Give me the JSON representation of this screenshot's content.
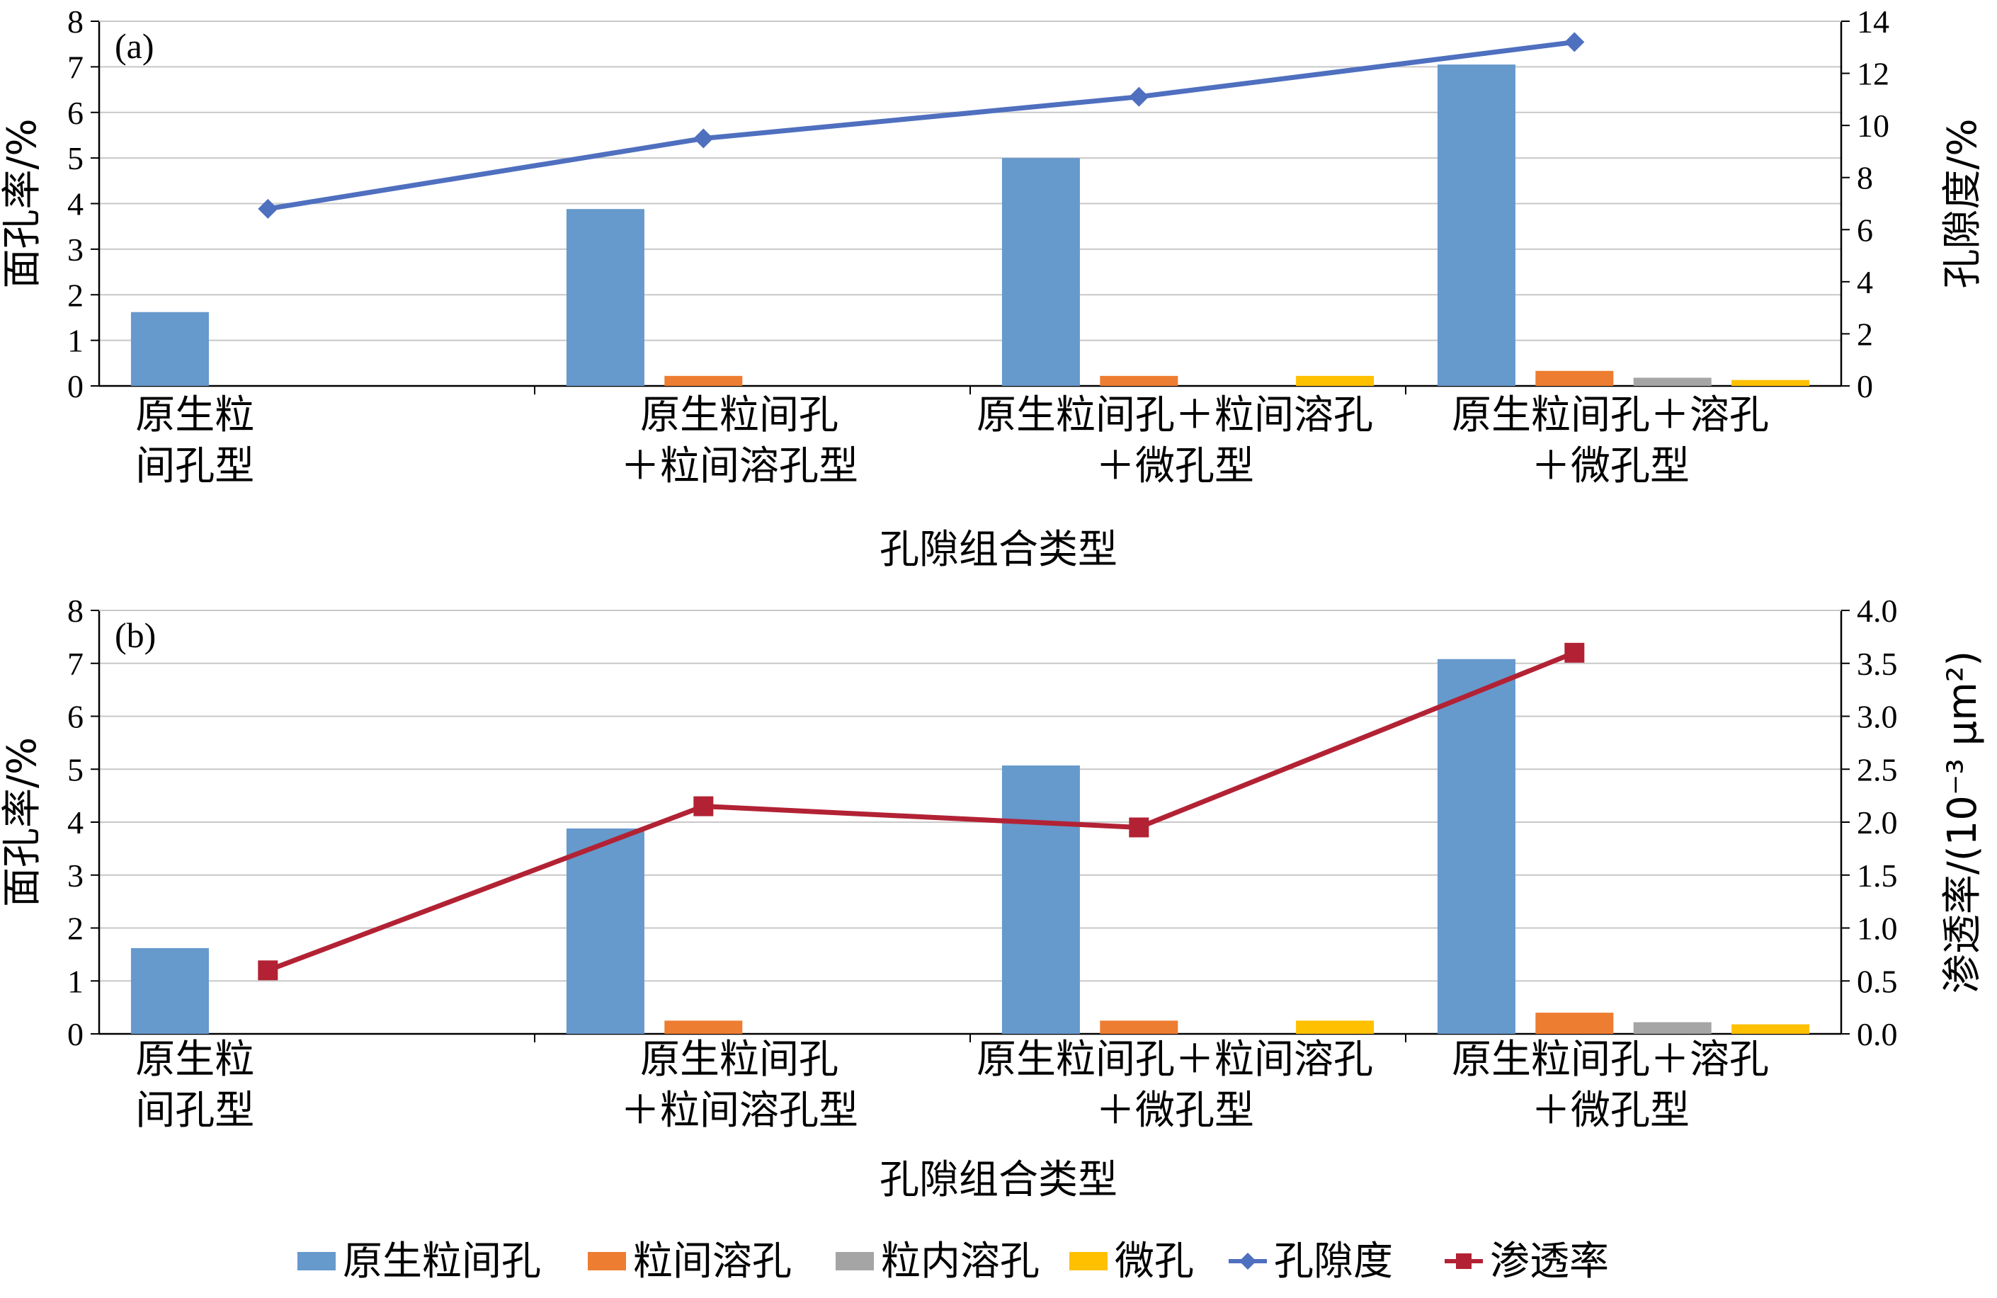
{
  "legend": {
    "items": [
      {
        "label": "原生粒间孔",
        "color": "#6699CC",
        "kind": "bar"
      },
      {
        "label": "粒间溶孔",
        "color": "#ED7D31",
        "kind": "bar"
      },
      {
        "label": "粒内溶孔",
        "color": "#A5A5A5",
        "kind": "bar"
      },
      {
        "label": "微孔",
        "color": "#FFC000",
        "kind": "bar"
      },
      {
        "label": "孔隙度",
        "color": "#4F6FBF",
        "kind": "line-diamond"
      },
      {
        "label": "渗透率",
        "color": "#B22234",
        "kind": "line-square"
      }
    ],
    "placement": "bottom"
  },
  "chart_data": [
    {
      "type": "bar",
      "panel_label": "(a)",
      "categories": [
        [
          "原生粒",
          "间孔型"
        ],
        [
          "原生粒间孔",
          "＋粒间溶孔型"
        ],
        [
          "原生粒间孔＋粒间溶孔",
          "＋微孔型"
        ],
        [
          "原生粒间孔＋溶孔",
          "＋微孔型"
        ]
      ],
      "xlabel": "孔隙组合类型",
      "ylabel": "面孔率/%",
      "ylim": [
        0,
        8
      ],
      "yticks": [
        "0",
        "1",
        "2",
        "3",
        "4",
        "5",
        "6",
        "7",
        "8"
      ],
      "y2label": "孔隙度/%",
      "y2lim": [
        0,
        14
      ],
      "y2ticks": [
        "0",
        "2",
        "4",
        "6",
        "8",
        "10",
        "12",
        "14"
      ],
      "grid": true,
      "series": [
        {
          "name": "原生粒间孔",
          "values": [
            1.62,
            3.88,
            5.0,
            7.05
          ]
        },
        {
          "name": "粒间溶孔",
          "values": [
            0,
            0.22,
            0.22,
            0.33
          ]
        },
        {
          "name": "粒内溶孔",
          "values": [
            0,
            0,
            0,
            0.18
          ]
        },
        {
          "name": "微孔",
          "values": [
            0,
            0,
            0.22,
            0.13
          ]
        }
      ],
      "line": {
        "name": "孔隙度",
        "values": [
          6.8,
          9.5,
          11.1,
          13.2
        ]
      }
    },
    {
      "type": "bar",
      "panel_label": "(b)",
      "categories": [
        [
          "原生粒",
          "间孔型"
        ],
        [
          "原生粒间孔",
          "＋粒间溶孔型"
        ],
        [
          "原生粒间孔＋粒间溶孔",
          "＋微孔型"
        ],
        [
          "原生粒间孔＋溶孔",
          "＋微孔型"
        ]
      ],
      "xlabel": "孔隙组合类型",
      "ylabel": "面孔率/%",
      "ylim": [
        0,
        8
      ],
      "yticks": [
        "0",
        "1",
        "2",
        "3",
        "4",
        "5",
        "6",
        "7",
        "8"
      ],
      "y2label": "渗透率/(10⁻³ μm²)",
      "y2lim": [
        0,
        4
      ],
      "y2ticks": [
        "0.0",
        "0.5",
        "1.0",
        "1.5",
        "2.0",
        "2.5",
        "3.0",
        "3.5",
        "4.0"
      ],
      "grid": true,
      "series": [
        {
          "name": "原生粒间孔",
          "values": [
            1.62,
            3.88,
            5.07,
            7.08
          ]
        },
        {
          "name": "粒间溶孔",
          "values": [
            0,
            0.25,
            0.25,
            0.4
          ]
        },
        {
          "name": "粒内溶孔",
          "values": [
            0,
            0,
            0,
            0.22
          ]
        },
        {
          "name": "微孔",
          "values": [
            0,
            0,
            0.25,
            0.18
          ]
        }
      ],
      "line": {
        "name": "渗透率",
        "values": [
          0.6,
          2.15,
          1.95,
          3.6
        ]
      }
    }
  ]
}
